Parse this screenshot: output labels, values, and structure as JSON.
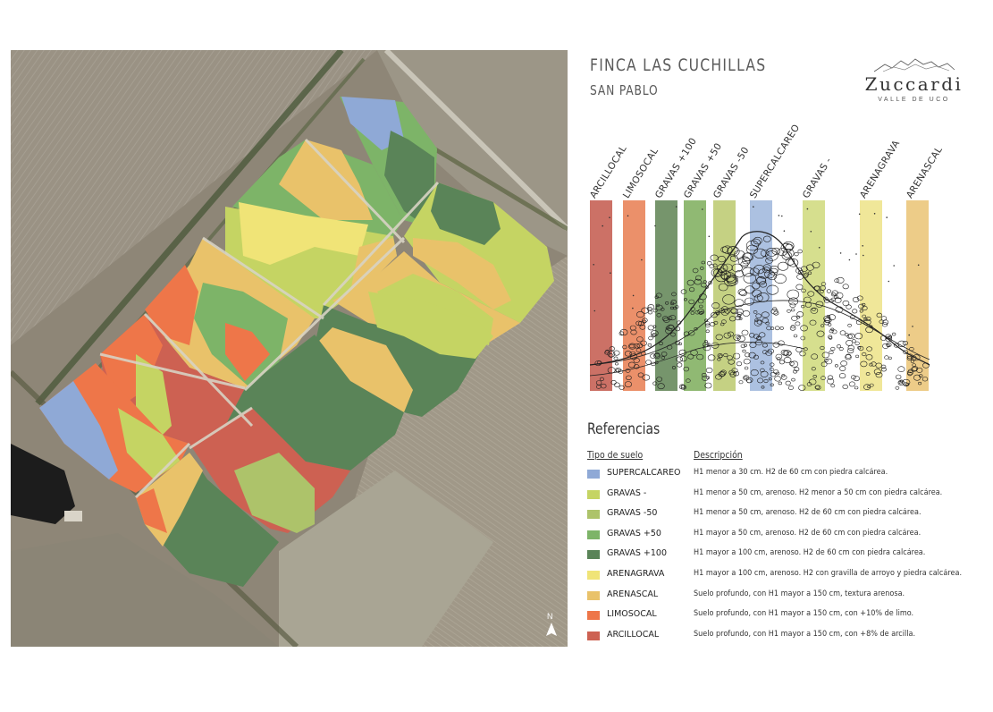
{
  "header": {
    "title": "FINCA LAS CUCHILLAS",
    "subtitle": "SAN PABLO"
  },
  "logo": {
    "brand": "Zuccardi",
    "region": "VALLE DE UCO"
  },
  "profile": {
    "columns": [
      {
        "label": "ARCILLOCAL",
        "color": "#c9695e"
      },
      {
        "label": "LIMOSOCAL",
        "color": "#ea8a62"
      },
      {
        "label": "GRAVAS +100",
        "color": "#6f8f64"
      },
      {
        "label": "GRAVAS +50",
        "color": "#8ab56c"
      },
      {
        "label": "GRAVAS -50",
        "color": "#c2cf7c"
      },
      {
        "label": "SUPERCALCAREO",
        "color": "#a8bedf"
      },
      {
        "label": "GRAVAS -",
        "color": "#d4dd88"
      },
      {
        "label": "ARENAGRAVA",
        "color": "#efe694"
      },
      {
        "label": "ARENASCAL",
        "color": "#ecc982"
      }
    ]
  },
  "legend": {
    "title": "Referencias",
    "col_type": "Tipo de suelo",
    "col_desc": "Descripción",
    "items": [
      {
        "name": "SUPERCALCAREO",
        "color": "#8fa9d6",
        "desc": "H1 menor a 30 cm. H2 de 60 cm con piedra calcárea."
      },
      {
        "name": "GRAVAS -",
        "color": "#c5d463",
        "desc": "H1 menor a 50 cm, arenoso. H2 menor a 50 cm con piedra calcárea."
      },
      {
        "name": "GRAVAS -50",
        "color": "#adc36a",
        "desc": "H1 menor a 50 cm, arenoso. H2 de 60 cm con piedra calcárea."
      },
      {
        "name": "GRAVAS +50",
        "color": "#7db468",
        "desc": "H1 mayor a 50 cm, arenoso. H2 de 60 cm con piedra calcárea."
      },
      {
        "name": "GRAVAS +100",
        "color": "#5a8458",
        "desc": "H1 mayor a 100 cm, arenoso. H2 de 60 cm con piedra calcárea."
      },
      {
        "name": "ARENAGRAVA",
        "color": "#f0e477",
        "desc": "H1 mayor a 100 cm, arenoso. H2 con gravilla de arroyo y piedra calcárea."
      },
      {
        "name": "ARENASCAL",
        "color": "#e9c26a",
        "desc": "Suelo profundo, con H1 mayor a 150 cm, textura arenosa."
      },
      {
        "name": "LIMOSOCAL",
        "color": "#ee7649",
        "desc": "Suelo profundo, con H1 mayor a 150 cm, con +10% de limo."
      },
      {
        "name": "ARCILLOCAL",
        "color": "#cd6152",
        "desc": "Suelo profundo, con H1 mayor a 150 cm, con +8% de arcilla."
      }
    ]
  },
  "map": {
    "north_label": "N"
  }
}
